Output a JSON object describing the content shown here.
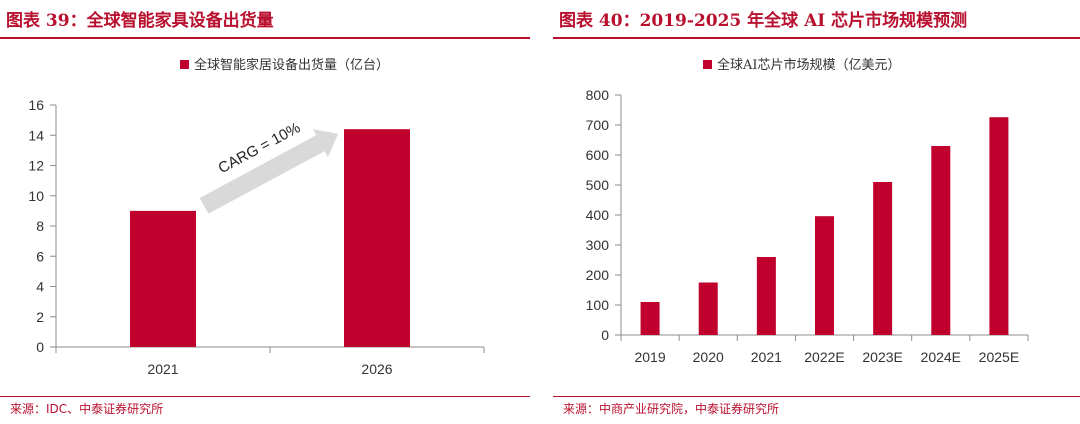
{
  "charts": [
    {
      "title": "图表 39：全球智能家具设备出货量",
      "source": "来源：IDC、中泰证券研究所",
      "accent": "#c0002d",
      "chart_data": {
        "type": "bar",
        "categories": [
          "2021",
          "2026"
        ],
        "series": [
          {
            "name": "全球智能家居设备出货量（亿台）",
            "values": [
              9.0,
              14.4
            ]
          }
        ],
        "ylim": [
          0,
          16
        ],
        "yticks": [
          0,
          2,
          4,
          6,
          8,
          10,
          12,
          14,
          16
        ],
        "annotation": "CARG = 10%",
        "xlabel": "",
        "ylabel": "",
        "grid": false,
        "legend": "top-center"
      }
    },
    {
      "title": "图表 40：2019-2025 年全球 AI 芯片市场规模预测",
      "source": "来源：中商产业研究院，中泰证券研究所",
      "accent": "#c0002d",
      "chart_data": {
        "type": "bar",
        "categories": [
          "2019",
          "2020",
          "2021",
          "2022E",
          "2023E",
          "2024E",
          "2025E"
        ],
        "series": [
          {
            "name": "全球AI芯片市场规模（亿美元）",
            "values": [
              110,
              175,
              260,
              396,
              510,
              630,
              726
            ]
          }
        ],
        "ylim": [
          0,
          800
        ],
        "yticks": [
          0,
          100,
          200,
          300,
          400,
          500,
          600,
          700,
          800
        ],
        "xlabel": "",
        "ylabel": "",
        "grid": false,
        "legend": "top-center"
      }
    }
  ]
}
